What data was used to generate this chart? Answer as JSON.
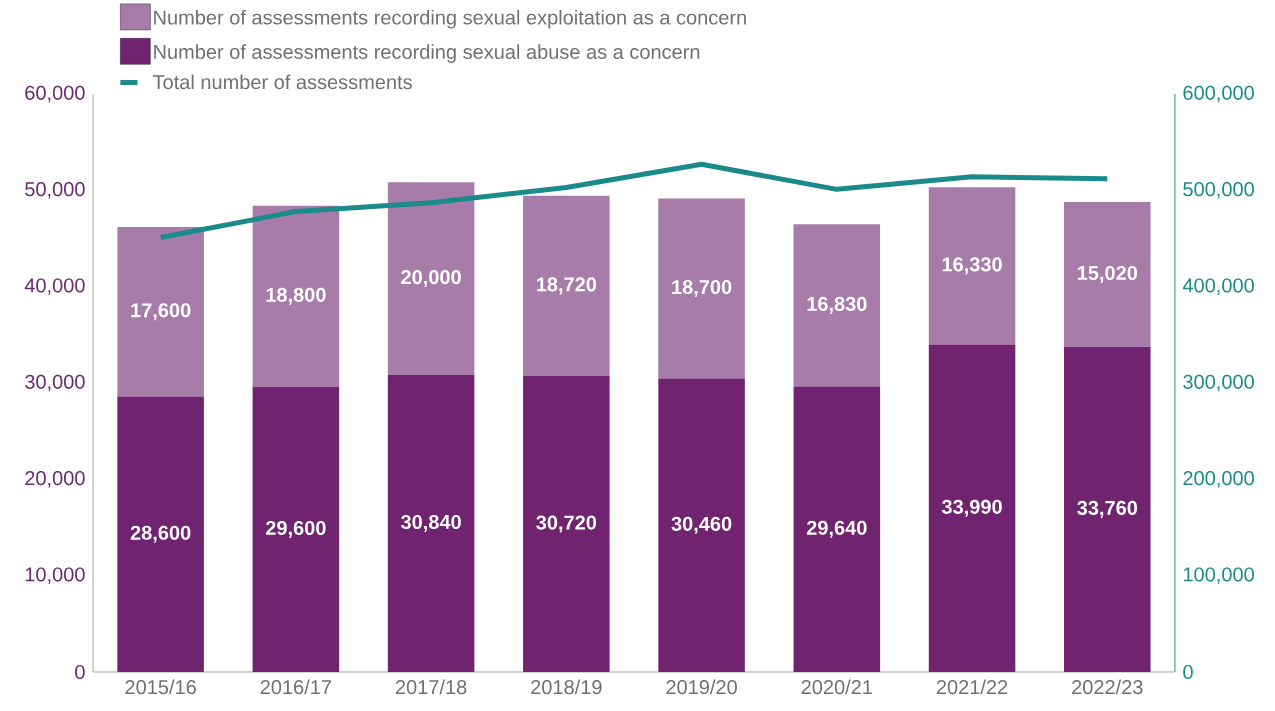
{
  "chart_data": {
    "type": "bar",
    "stacked": true,
    "categories": [
      "2015/16",
      "2016/17",
      "2017/18",
      "2018/19",
      "2019/20",
      "2020/21",
      "2021/22",
      "2022/23"
    ],
    "series": [
      {
        "name": "Number of assessments recording sexual abuse as a concern",
        "color": "#70246f",
        "values": [
          28600,
          29600,
          30840,
          30720,
          30460,
          29640,
          33990,
          33760
        ],
        "value_labels": [
          "28,600",
          "29,600",
          "30,840",
          "30,720",
          "30,460",
          "29,640",
          "33,990",
          "33,760"
        ]
      },
      {
        "name": "Number of assessments recording sexual exploitation as a concern",
        "color": "#a77ca8",
        "values": [
          17600,
          18800,
          20000,
          18720,
          18700,
          16830,
          16330,
          15020
        ],
        "value_labels": [
          "17,600",
          "18,800",
          "20,000",
          "18,720",
          "18,700",
          "16,830",
          "16,330",
          "15,020"
        ]
      },
      {
        "name": "Total number of assessments",
        "type": "line",
        "axis": "y2",
        "color": "#1b8a8a",
        "values": [
          451000,
          478000,
          487000,
          503000,
          527000,
          501000,
          514000,
          512000
        ]
      }
    ],
    "ylim": [
      0,
      60000
    ],
    "yticks": [
      {
        "value": 0,
        "label": "0"
      },
      {
        "value": 10000,
        "label": "10,000"
      },
      {
        "value": 20000,
        "label": "20,000"
      },
      {
        "value": 30000,
        "label": "30,000"
      },
      {
        "value": 40000,
        "label": "40,000"
      },
      {
        "value": 50000,
        "label": "50,000"
      },
      {
        "value": 60000,
        "label": "60,000"
      }
    ],
    "y2lim": [
      0,
      600000
    ],
    "y2ticks": [
      {
        "value": 0,
        "label": "0"
      },
      {
        "value": 100000,
        "label": "100,000"
      },
      {
        "value": 200000,
        "label": "200,000"
      },
      {
        "value": 300000,
        "label": "300,000"
      },
      {
        "value": 400000,
        "label": "400,000"
      },
      {
        "value": 500000,
        "label": "500,000"
      },
      {
        "value": 600000,
        "label": "600,000"
      }
    ],
    "legend": "top left",
    "marker": "none",
    "line_style": "solid"
  }
}
